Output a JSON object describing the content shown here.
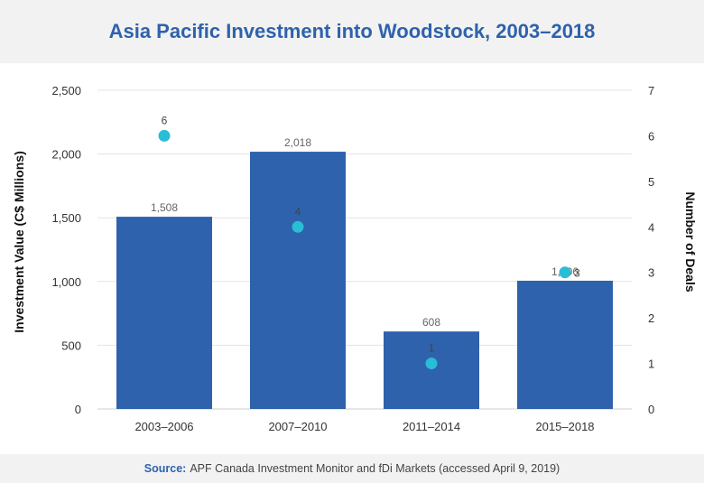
{
  "title": "Asia Pacific Investment into Woodstock, 2003–2018",
  "footer": {
    "source_label": "Source:",
    "source_text": "APF Canada Investment Monitor and fDi Markets (accessed April 9, 2019)"
  },
  "colors": {
    "bar": "#2e62ad",
    "dot": "#29bdd6",
    "title": "#2e62ad",
    "grid": "#e3e3e3"
  },
  "chart_data": {
    "type": "bar",
    "categories": [
      "2003–2006",
      "2007–2010",
      "2011–2014",
      "2015–2018"
    ],
    "series": [
      {
        "name": "Investment Value (C$ Millions)",
        "type": "bar",
        "axis": "left",
        "values": [
          1508,
          2018,
          608,
          1006
        ],
        "labels": [
          "1,508",
          "2,018",
          "608",
          "1,006"
        ]
      },
      {
        "name": "Number of Deals",
        "type": "scatter",
        "axis": "right",
        "values": [
          6,
          4,
          1,
          3
        ],
        "labels": [
          "6",
          "4",
          "1",
          "3"
        ]
      }
    ],
    "ylabel": "Investment Value (C$ Millions)",
    "y2label": "Number of Deals",
    "ylim": [
      0,
      2500
    ],
    "y2lim": [
      0,
      7
    ],
    "yticks": [
      "0",
      "500",
      "1,000",
      "1,500",
      "2,000",
      "2,500"
    ],
    "y2ticks": [
      "0",
      "1",
      "2",
      "3",
      "4",
      "5",
      "6",
      "7"
    ],
    "grid": true,
    "legend": "none"
  }
}
